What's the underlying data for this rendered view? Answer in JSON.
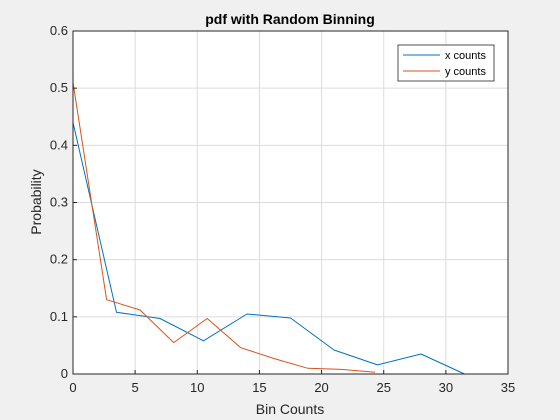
{
  "chart_data": {
    "type": "line",
    "title": "pdf with Random Binning",
    "xlabel": "Bin Counts",
    "ylabel": "Probability",
    "xlim": [
      0,
      35
    ],
    "ylim": [
      0,
      0.6
    ],
    "xticks": [
      0,
      5,
      10,
      15,
      20,
      25,
      30,
      35
    ],
    "yticks": [
      0,
      0.1,
      0.2,
      0.3,
      0.4,
      0.5,
      0.6
    ],
    "xtick_labels": [
      "0",
      "5",
      "10",
      "15",
      "20",
      "25",
      "30",
      "35"
    ],
    "ytick_labels": [
      "0",
      "0.1",
      "0.2",
      "0.3",
      "0.4",
      "0.5",
      "0.6"
    ],
    "grid": true,
    "legend_position": "top-right",
    "series": [
      {
        "name": "x counts",
        "color": "#0072bd",
        "x": [
          0,
          3.5,
          7,
          10.5,
          14,
          17.5,
          21,
          24.5,
          28,
          31.5
        ],
        "y": [
          0.44,
          0.108,
          0.097,
          0.058,
          0.105,
          0.098,
          0.042,
          0.016,
          0.035,
          0.0
        ]
      },
      {
        "name": "y counts",
        "color": "#d95319",
        "x": [
          0,
          2.7,
          5.4,
          8.1,
          10.8,
          13.5,
          16.2,
          18.9,
          21.6,
          24.3
        ],
        "y": [
          0.51,
          0.13,
          0.112,
          0.055,
          0.097,
          0.046,
          0.027,
          0.01,
          0.008,
          0.003
        ]
      }
    ]
  }
}
